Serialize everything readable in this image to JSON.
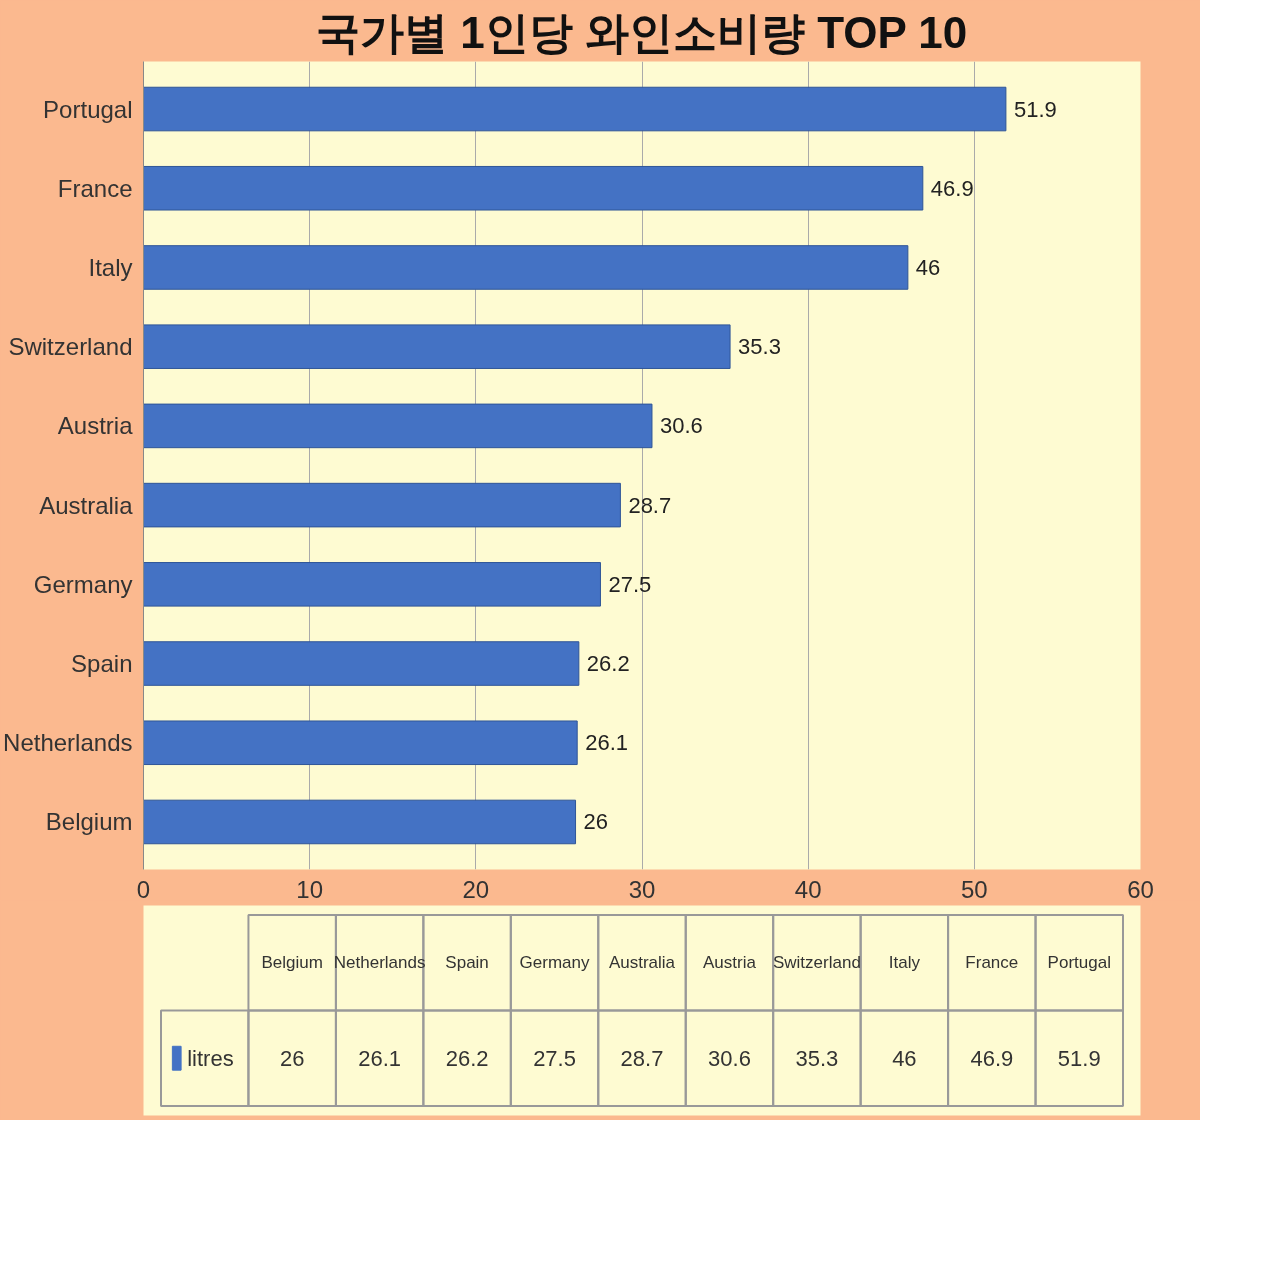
{
  "chart_data": [
    {
      "type": "bar",
      "orientation": "horizontal",
      "title": "국가별 1인당 와인소비량 TOP 10",
      "categories": [
        "Portugal",
        "France",
        "Italy",
        "Switzerland",
        "Austria",
        "Australia",
        "Germany",
        "Spain",
        "Netherlands",
        "Belgium"
      ],
      "series": [
        {
          "color": "#4472c4",
          "values": [
            51.9,
            46.9,
            46,
            35.3,
            30.6,
            28.7,
            27.5,
            26.2,
            26.1,
            26
          ]
        }
      ],
      "xlim": [
        0,
        60
      ],
      "xticks": [
        0,
        10,
        20,
        30,
        40,
        50,
        60
      ],
      "grid": "x",
      "data_labels": true
    },
    {
      "type": "other",
      "categories": [
        "Belgium",
        "Netherlands",
        "Spain",
        "Germany",
        "Australia",
        "Austria",
        "Switzerland",
        "Italy",
        "France",
        "Portugal"
      ],
      "series": [
        {
          "name": "litres",
          "values": [
            26,
            26.1,
            26.2,
            27.5,
            28.7,
            30.6,
            35.3,
            46,
            46.9,
            51.9
          ]
        }
      ],
      "data_labels": true
    }
  ]
}
